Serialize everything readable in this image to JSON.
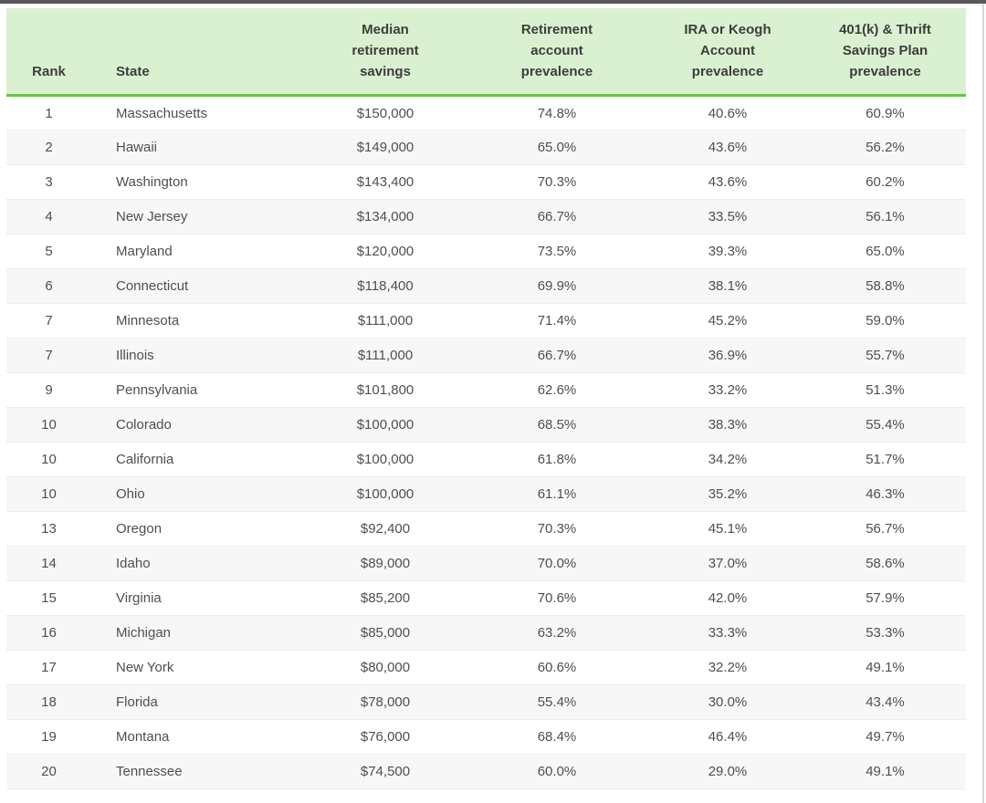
{
  "page": {
    "colors": {
      "header_bg": "#d9f1d0",
      "header_border_green": "#6cc04d",
      "row_alt_bg": "#f7f7f7",
      "row_border": "#ededed",
      "header_text": "#3d3d3d",
      "cell_text": "#4f4f4f",
      "top_bar": "#56585c",
      "right_edge_line": "#d8d8d8"
    }
  },
  "table": {
    "columns": [
      {
        "label": "Rank",
        "align": "center"
      },
      {
        "label": "State",
        "align": "left"
      },
      {
        "label": "Median\nretirement\nsavings",
        "align": "center"
      },
      {
        "label": "Retirement\naccount\nprevalence",
        "align": "center"
      },
      {
        "label": "IRA or Keogh\nAccount\nprevalence",
        "align": "center"
      },
      {
        "label": "401(k) & Thrift\nSavings Plan\nprevalence",
        "align": "center"
      }
    ],
    "cell_names": [
      "rank-cell",
      "state-cell",
      "median-savings-cell",
      "retirement-account-prevalence-cell",
      "ira-keogh-prevalence-cell",
      "401k-thrift-prevalence-cell"
    ],
    "rows": [
      [
        "1",
        "Massachusetts",
        "$150,000",
        "74.8%",
        "40.6%",
        "60.9%"
      ],
      [
        "2",
        "Hawaii",
        "$149,000",
        "65.0%",
        "43.6%",
        "56.2%"
      ],
      [
        "3",
        "Washington",
        "$143,400",
        "70.3%",
        "43.6%",
        "60.2%"
      ],
      [
        "4",
        "New Jersey",
        "$134,000",
        "66.7%",
        "33.5%",
        "56.1%"
      ],
      [
        "5",
        "Maryland",
        "$120,000",
        "73.5%",
        "39.3%",
        "65.0%"
      ],
      [
        "6",
        "Connecticut",
        "$118,400",
        "69.9%",
        "38.1%",
        "58.8%"
      ],
      [
        "7",
        "Minnesota",
        "$111,000",
        "71.4%",
        "45.2%",
        "59.0%"
      ],
      [
        "7",
        "Illinois",
        "$111,000",
        "66.7%",
        "36.9%",
        "55.7%"
      ],
      [
        "9",
        "Pennsylvania",
        "$101,800",
        "62.6%",
        "33.2%",
        "51.3%"
      ],
      [
        "10",
        "Colorado",
        "$100,000",
        "68.5%",
        "38.3%",
        "55.4%"
      ],
      [
        "10",
        "California",
        "$100,000",
        "61.8%",
        "34.2%",
        "51.7%"
      ],
      [
        "10",
        "Ohio",
        "$100,000",
        "61.1%",
        "35.2%",
        "46.3%"
      ],
      [
        "13",
        "Oregon",
        "$92,400",
        "70.3%",
        "45.1%",
        "56.7%"
      ],
      [
        "14",
        "Idaho",
        "$89,000",
        "70.0%",
        "37.0%",
        "58.6%"
      ],
      [
        "15",
        "Virginia",
        "$85,200",
        "70.6%",
        "42.0%",
        "57.9%"
      ],
      [
        "16",
        "Michigan",
        "$85,000",
        "63.2%",
        "33.3%",
        "53.3%"
      ],
      [
        "17",
        "New York",
        "$80,000",
        "60.6%",
        "32.2%",
        "49.1%"
      ],
      [
        "18",
        "Florida",
        "$78,000",
        "55.4%",
        "30.0%",
        "43.4%"
      ],
      [
        "19",
        "Montana",
        "$76,000",
        "68.4%",
        "46.4%",
        "49.7%"
      ],
      [
        "20",
        "Tennessee",
        "$74,500",
        "60.0%",
        "29.0%",
        "49.1%"
      ]
    ]
  }
}
